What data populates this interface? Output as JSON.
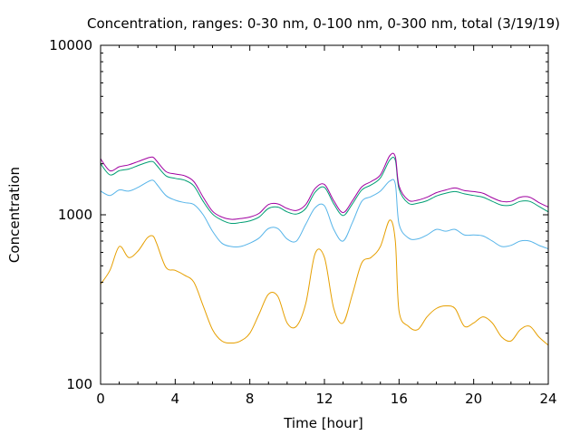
{
  "chart_data": {
    "type": "line",
    "title": "Concentration, ranges: 0-30 nm, 0-100 nm, 0-300 nm, total (3/19/19)",
    "xlabel": "Time [hour]",
    "ylabel": "Concentration",
    "xlim": [
      0,
      24
    ],
    "ylim": [
      100,
      10000
    ],
    "yscale": "log",
    "xticks": [
      0,
      4,
      8,
      12,
      16,
      20,
      24
    ],
    "yticks": [
      100,
      1000,
      10000
    ],
    "grid": false,
    "legend": "none",
    "series": [
      {
        "color": "#e69f00",
        "x": [
          0,
          0.5,
          1,
          1.5,
          2,
          2.5,
          2.8,
          3,
          3.5,
          4,
          4.5,
          5,
          5.5,
          6,
          6.5,
          7,
          7.5,
          8,
          8.5,
          9,
          9.5,
          10,
          10.5,
          11,
          11.5,
          12,
          12.5,
          13,
          13.5,
          14,
          14.5,
          15,
          15.5,
          15.8,
          16,
          16.5,
          17,
          17.5,
          18,
          18.5,
          19,
          19.5,
          20,
          20.5,
          21,
          21.5,
          22,
          22.5,
          23,
          23.5,
          24
        ],
        "y": [
          390,
          470,
          650,
          560,
          610,
          730,
          750,
          680,
          490,
          470,
          440,
          400,
          290,
          210,
          180,
          175,
          180,
          200,
          260,
          340,
          330,
          230,
          220,
          300,
          590,
          560,
          280,
          230,
          340,
          520,
          560,
          650,
          930,
          700,
          270,
          220,
          210,
          250,
          280,
          290,
          280,
          220,
          230,
          250,
          230,
          190,
          180,
          210,
          220,
          190,
          170
        ]
      },
      {
        "color": "#56b4e9",
        "x": [
          0,
          0.5,
          1,
          1.5,
          2,
          2.5,
          2.8,
          3,
          3.5,
          4,
          4.5,
          5,
          5.5,
          6,
          6.5,
          7,
          7.5,
          8,
          8.5,
          9,
          9.5,
          10,
          10.5,
          11,
          11.5,
          12,
          12.5,
          13,
          13.5,
          14,
          14.5,
          15,
          15.5,
          15.8,
          16,
          16.5,
          17,
          17.5,
          18,
          18.5,
          19,
          19.5,
          20,
          20.5,
          21,
          21.5,
          22,
          22.5,
          23,
          23.5,
          24
        ],
        "y": [
          1380,
          1300,
          1400,
          1380,
          1450,
          1560,
          1600,
          1520,
          1300,
          1220,
          1180,
          1150,
          1000,
          800,
          680,
          650,
          650,
          680,
          730,
          830,
          830,
          720,
          700,
          880,
          1100,
          1130,
          820,
          700,
          900,
          1200,
          1280,
          1380,
          1580,
          1520,
          880,
          730,
          720,
          760,
          820,
          800,
          820,
          760,
          760,
          750,
          700,
          650,
          660,
          700,
          700,
          660,
          630
        ]
      },
      {
        "color": "#009e73",
        "x": [
          0,
          0.5,
          1,
          1.5,
          2,
          2.5,
          2.8,
          3,
          3.5,
          4,
          4.5,
          5,
          5.5,
          6,
          6.5,
          7,
          7.5,
          8,
          8.5,
          9,
          9.5,
          10,
          10.5,
          11,
          11.5,
          12,
          12.5,
          13,
          13.5,
          14,
          14.5,
          15,
          15.5,
          15.8,
          16,
          16.5,
          17,
          17.5,
          18,
          18.5,
          19,
          19.5,
          20,
          20.5,
          21,
          21.5,
          22,
          22.5,
          23,
          23.5,
          24
        ],
        "y": [
          2000,
          1720,
          1820,
          1860,
          1950,
          2040,
          2060,
          1960,
          1700,
          1640,
          1600,
          1480,
          1200,
          1010,
          930,
          890,
          900,
          920,
          970,
          1090,
          1110,
          1040,
          1010,
          1090,
          1360,
          1450,
          1160,
          990,
          1160,
          1400,
          1500,
          1650,
          2100,
          2100,
          1420,
          1170,
          1170,
          1210,
          1290,
          1340,
          1370,
          1330,
          1300,
          1270,
          1200,
          1140,
          1140,
          1200,
          1200,
          1120,
          1040
        ]
      },
      {
        "color": "#a000a0",
        "x": [
          0,
          0.5,
          1,
          1.5,
          2,
          2.5,
          2.8,
          3,
          3.5,
          4,
          4.5,
          5,
          5.5,
          6,
          6.5,
          7,
          7.5,
          8,
          8.5,
          9,
          9.5,
          10,
          10.5,
          11,
          11.5,
          12,
          12.5,
          13,
          13.5,
          14,
          14.5,
          15,
          15.5,
          15.8,
          16,
          16.5,
          17,
          17.5,
          18,
          18.5,
          19,
          19.5,
          20,
          20.5,
          21,
          21.5,
          22,
          22.5,
          23,
          23.5,
          24
        ],
        "y": [
          2140,
          1820,
          1920,
          1970,
          2060,
          2160,
          2190,
          2080,
          1800,
          1740,
          1700,
          1570,
          1270,
          1050,
          970,
          940,
          950,
          970,
          1020,
          1150,
          1160,
          1090,
          1060,
          1150,
          1430,
          1510,
          1210,
          1030,
          1210,
          1460,
          1570,
          1720,
          2230,
          2200,
          1480,
          1220,
          1220,
          1270,
          1350,
          1400,
          1440,
          1390,
          1370,
          1340,
          1260,
          1200,
          1200,
          1270,
          1270,
          1180,
          1110
        ]
      }
    ]
  }
}
